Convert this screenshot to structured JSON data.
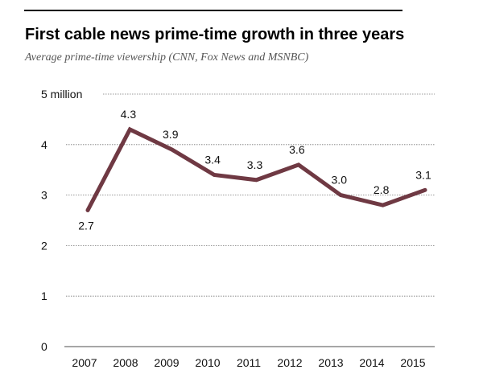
{
  "chart_data": {
    "type": "line",
    "title": "First cable news prime-time growth in three years",
    "subtitle": "Average prime-time viewership (CNN, Fox News and MSNBC)",
    "categories": [
      "2007",
      "2008",
      "2009",
      "2010",
      "2011",
      "2012",
      "2013",
      "2014",
      "2015"
    ],
    "values": [
      2.7,
      4.3,
      3.9,
      3.4,
      3.3,
      3.6,
      3.0,
      2.8,
      3.1
    ],
    "data_labels": [
      "2.7",
      "4.3",
      "3.9",
      "3.4",
      "3.3",
      "3.6",
      "3.0",
      "2.8",
      "3.1"
    ],
    "y_ticks": [
      0,
      1,
      2,
      3,
      4,
      5
    ],
    "y_tick_labels": [
      "0",
      "1",
      "2",
      "3",
      "4",
      "5 million"
    ],
    "ylim": [
      0,
      5
    ],
    "xlabel": "",
    "ylabel": "",
    "grid": true,
    "line_color": "#6f3943"
  }
}
